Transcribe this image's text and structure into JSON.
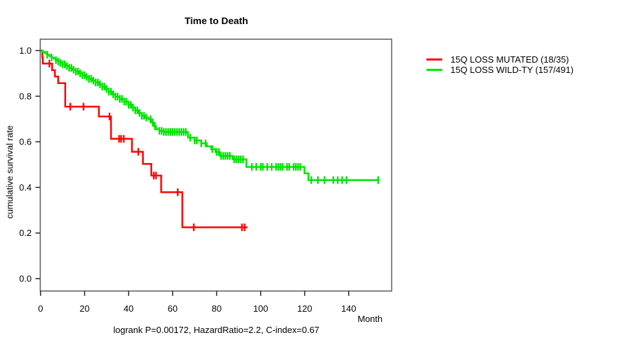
{
  "title": "Time to Death",
  "axes": {
    "ylabel": "cumulative survival rate",
    "xlabel": "Month"
  },
  "caption": "logrank P=0.00172, HazardRatio=2.2, C-index=0.67",
  "legend": [
    {
      "label": "15Q LOSS MUTATED (18/35)",
      "color": "#ff0000"
    },
    {
      "label": "15Q LOSS WILD-TY (157/491)",
      "color": "#00e400"
    }
  ],
  "chart_data": {
    "type": "line",
    "subtype": "kaplan-meier-step-curves",
    "title": "Time to Death",
    "xlabel": "Month",
    "ylabel": "cumulative survival rate",
    "xlim": [
      0,
      155
    ],
    "ylim": [
      0.0,
      1.0
    ],
    "grid": false,
    "legend_position": "right-outside",
    "x_ticks": [
      "0",
      "20",
      "40",
      "60",
      "80",
      "100",
      "120",
      "140"
    ],
    "y_ticks": [
      "0.0",
      "0.2",
      "0.4",
      "0.6",
      "0.8",
      "1.0"
    ],
    "annotation": "logrank P=0.00172, HazardRatio=2.2, C-index=0.67",
    "series": [
      {
        "name": "15Q LOSS MUTATED (18/35)",
        "color": "#ff0000",
        "points": [
          [
            0,
            1.0
          ],
          [
            0.8,
            0.971
          ],
          [
            1.0,
            0.943
          ],
          [
            5.2,
            0.914
          ],
          [
            6.5,
            0.886
          ],
          [
            8,
            0.857
          ],
          [
            11.2,
            0.754
          ],
          [
            26.5,
            0.711
          ],
          [
            32,
            0.613
          ],
          [
            41.5,
            0.556
          ],
          [
            46.5,
            0.503
          ],
          [
            50.3,
            0.452
          ],
          [
            54.8,
            0.379
          ],
          [
            64.4,
            0.225
          ]
        ],
        "end_month": 94,
        "censor_ticks": [
          4,
          13.5,
          19.5,
          31.3,
          35.7,
          36.6,
          37.8,
          44.4,
          51.4,
          52.4,
          62.3,
          69.6,
          91.5,
          92.7
        ]
      },
      {
        "name": "15Q LOSS WILD-TY (157/491)",
        "color": "#00e400",
        "points": [
          [
            0,
            1.0
          ],
          [
            1,
            0.994
          ],
          [
            2,
            0.988
          ],
          [
            3,
            0.982
          ],
          [
            4,
            0.976
          ],
          [
            5,
            0.97
          ],
          [
            6,
            0.964
          ],
          [
            7,
            0.958
          ],
          [
            8,
            0.952
          ],
          [
            9,
            0.946
          ],
          [
            10,
            0.94
          ],
          [
            11.5,
            0.932
          ],
          [
            13,
            0.924
          ],
          [
            14.5,
            0.916
          ],
          [
            16,
            0.908
          ],
          [
            17.5,
            0.9
          ],
          [
            19,
            0.892
          ],
          [
            20.5,
            0.884
          ],
          [
            22,
            0.876
          ],
          [
            23.5,
            0.868
          ],
          [
            25,
            0.86
          ],
          [
            26.5,
            0.852
          ],
          [
            28,
            0.842
          ],
          [
            29.5,
            0.832
          ],
          [
            31,
            0.82
          ],
          [
            32.5,
            0.808
          ],
          [
            34,
            0.798
          ],
          [
            36,
            0.788
          ],
          [
            38,
            0.776
          ],
          [
            40,
            0.762
          ],
          [
            41.5,
            0.75
          ],
          [
            43,
            0.738
          ],
          [
            44.5,
            0.726
          ],
          [
            46,
            0.714
          ],
          [
            47.5,
            0.706
          ],
          [
            49,
            0.699
          ],
          [
            50.5,
            0.684
          ],
          [
            51.5,
            0.668
          ],
          [
            52.5,
            0.655
          ],
          [
            54,
            0.648
          ],
          [
            56,
            0.643
          ],
          [
            67,
            0.618
          ],
          [
            70,
            0.606
          ],
          [
            73,
            0.593
          ],
          [
            75.5,
            0.58
          ],
          [
            77.5,
            0.568
          ],
          [
            79.5,
            0.555
          ],
          [
            81.5,
            0.538
          ],
          [
            87.3,
            0.523
          ],
          [
            93.5,
            0.49
          ],
          [
            119.9,
            0.462
          ],
          [
            121.7,
            0.432
          ]
        ],
        "end_month": 154,
        "censor_ticks": [
          3,
          5,
          7,
          8,
          9,
          10,
          11,
          12,
          13,
          14,
          15,
          16,
          17,
          18,
          19,
          20,
          21,
          22,
          23,
          24,
          25,
          26,
          27,
          28,
          29,
          30,
          31,
          32,
          33,
          34,
          35,
          36,
          37,
          38,
          39,
          40,
          41,
          42,
          43,
          44,
          45,
          46,
          47,
          48,
          50,
          51,
          52,
          54,
          55,
          56,
          57,
          58,
          59,
          60,
          61,
          62,
          63,
          64,
          65,
          66,
          68,
          70,
          71,
          73,
          75,
          78,
          80,
          81,
          82,
          83,
          84,
          85,
          86,
          88,
          89,
          90,
          91,
          92,
          96,
          98,
          100,
          101,
          103,
          105,
          107,
          108,
          109,
          110,
          112,
          113,
          115,
          116,
          117,
          118,
          123,
          126,
          129,
          133,
          135,
          137,
          139,
          153.4
        ]
      }
    ]
  }
}
